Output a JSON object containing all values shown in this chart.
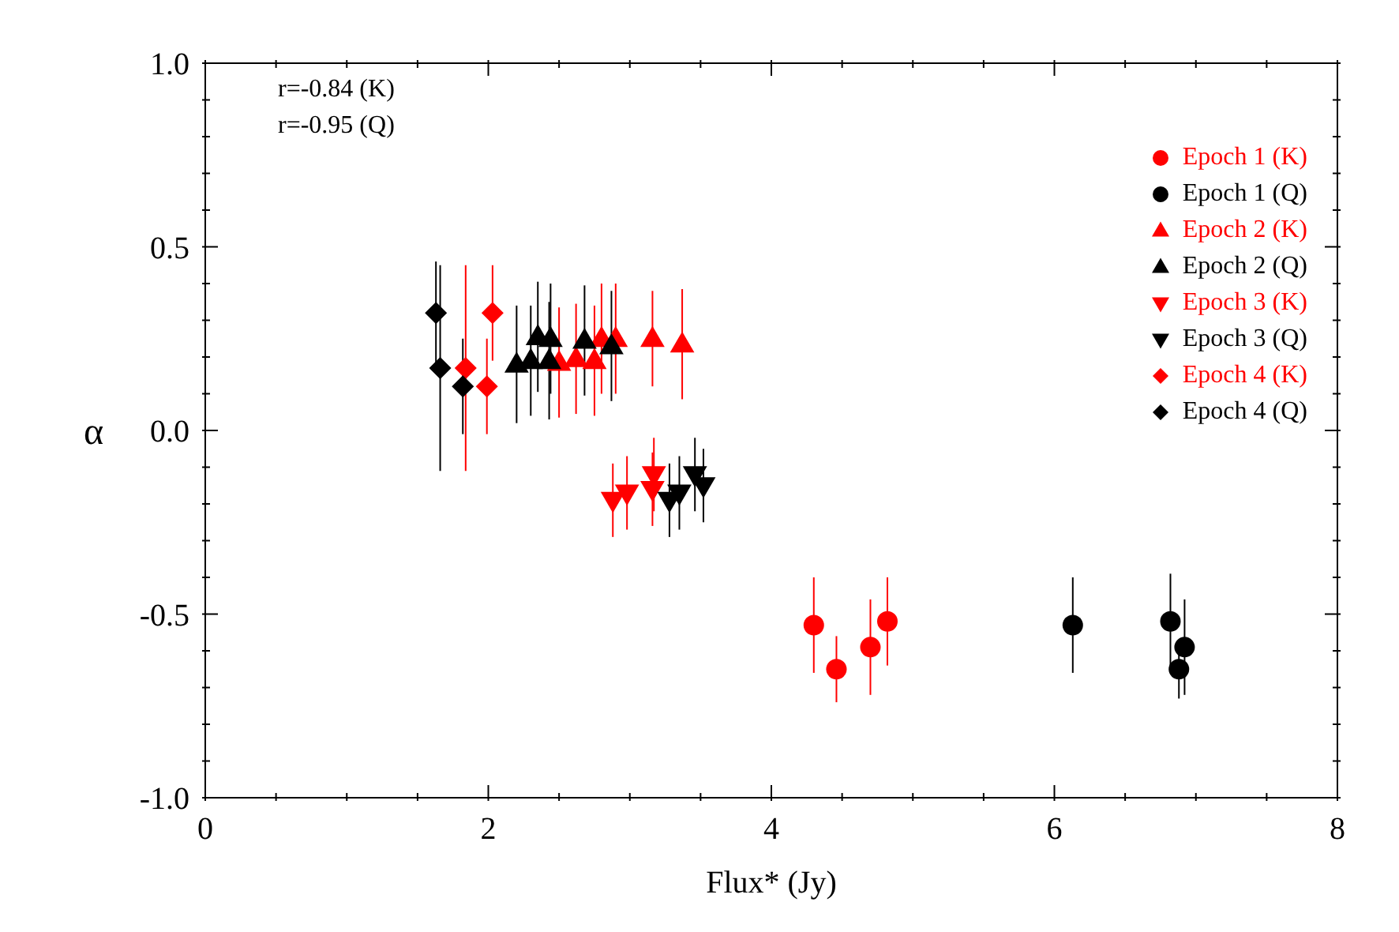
{
  "chart_data": {
    "type": "scatter",
    "xlabel": "Flux* (Jy)",
    "ylabel": "α",
    "annotations": [
      "r=-0.84 (K)",
      "r=-0.95 (Q)"
    ],
    "xlim": [
      0,
      8
    ],
    "ylim": [
      -1,
      1
    ],
    "xticks": [
      0,
      {
        "value": 0.5,
        "label": null
      },
      {
        "value": 1,
        "label": null
      },
      {
        "value": 1.5,
        "label": null
      },
      2,
      {
        "value": 2.5,
        "label": null
      },
      {
        "value": 3,
        "label": null
      },
      {
        "value": 3.5,
        "label": null
      },
      4,
      {
        "value": 4.5,
        "label": null
      },
      {
        "value": 5,
        "label": null
      },
      {
        "value": 5.5,
        "label": null
      },
      6,
      {
        "value": 6.5,
        "label": null
      },
      {
        "value": 7,
        "label": null
      },
      {
        "value": 7.5,
        "label": null
      },
      8
    ],
    "yticks": [
      {
        "value": -1,
        "label": "-1.0"
      },
      {
        "value": -0.9,
        "label": null
      },
      {
        "value": -0.8,
        "label": null
      },
      {
        "value": -0.7,
        "label": null
      },
      {
        "value": -0.6,
        "label": null
      },
      {
        "value": -0.5,
        "label": "-0.5"
      },
      {
        "value": -0.4,
        "label": null
      },
      {
        "value": -0.3,
        "label": null
      },
      {
        "value": -0.2,
        "label": null
      },
      {
        "value": -0.1,
        "label": null
      },
      {
        "value": 0,
        "label": "0.0"
      },
      {
        "value": 0.1,
        "label": null
      },
      {
        "value": 0.2,
        "label": null
      },
      {
        "value": 0.3,
        "label": null
      },
      {
        "value": 0.4,
        "label": null
      },
      {
        "value": 0.5,
        "label": "0.5"
      },
      {
        "value": 0.6,
        "label": null
      },
      {
        "value": 0.7,
        "label": null
      },
      {
        "value": 0.8,
        "label": null
      },
      {
        "value": 0.9,
        "label": null
      },
      {
        "value": 1,
        "label": "1.0"
      }
    ],
    "legend": "top right",
    "series": [
      {
        "name": "Epoch 1 (K)",
        "color": "#ff0000",
        "marker": "circle",
        "x": [
          4.3,
          4.46,
          4.7,
          4.82
        ],
        "values": [
          -0.53,
          -0.65,
          -0.59,
          -0.52
        ],
        "errors": [
          0.13,
          0.09,
          0.13,
          0.12
        ]
      },
      {
        "name": "Epoch 1 (Q)",
        "color": "#000000",
        "marker": "circle",
        "x": [
          6.13,
          6.82,
          6.88,
          6.92
        ],
        "values": [
          -0.53,
          -0.52,
          -0.65,
          -0.59
        ],
        "errors": [
          0.13,
          0.13,
          0.08,
          0.13
        ]
      },
      {
        "name": "Epoch 2 (K)",
        "color": "#ff0000",
        "marker": "triangle",
        "x": [
          2.5,
          2.62,
          2.75,
          2.8,
          2.9,
          3.16,
          3.37
        ],
        "values": [
          0.185,
          0.195,
          0.19,
          0.25,
          0.25,
          0.25,
          0.235
        ],
        "errors": [
          0.15,
          0.15,
          0.15,
          0.15,
          0.15,
          0.13,
          0.15
        ]
      },
      {
        "name": "Epoch 2 (Q)",
        "color": "#000000",
        "marker": "triangle",
        "x": [
          2.2,
          2.3,
          2.35,
          2.43,
          2.44,
          2.68,
          2.87
        ],
        "values": [
          0.18,
          0.19,
          0.255,
          0.19,
          0.25,
          0.245,
          0.23
        ],
        "errors": [
          0.16,
          0.15,
          0.15,
          0.16,
          0.15,
          0.15,
          0.15
        ]
      },
      {
        "name": "Epoch 3 (K)",
        "color": "#ff0000",
        "marker": "triangle-down",
        "x": [
          2.88,
          2.98,
          3.16,
          3.17
        ],
        "values": [
          -0.19,
          -0.17,
          -0.16,
          -0.12
        ],
        "errors": [
          0.1,
          0.1,
          0.1,
          0.1
        ]
      },
      {
        "name": "Epoch 3 (Q)",
        "color": "#000000",
        "marker": "triangle-down",
        "x": [
          3.28,
          3.35,
          3.46,
          3.52
        ],
        "values": [
          -0.19,
          -0.17,
          -0.12,
          -0.15
        ],
        "errors": [
          0.1,
          0.1,
          0.1,
          0.1
        ]
      },
      {
        "name": "Epoch 4 (K)",
        "color": "#ff0000",
        "marker": "diamond",
        "x": [
          1.84,
          1.99,
          2.03
        ],
        "values": [
          0.17,
          0.12,
          0.32
        ],
        "errors": [
          0.28,
          0.13,
          0.13
        ]
      },
      {
        "name": "Epoch 4 (Q)",
        "color": "#000000",
        "marker": "diamond",
        "x": [
          1.63,
          1.66,
          1.82
        ],
        "values": [
          0.32,
          0.17,
          0.12
        ],
        "errors": [
          0.14,
          0.28,
          0.13
        ]
      }
    ]
  }
}
